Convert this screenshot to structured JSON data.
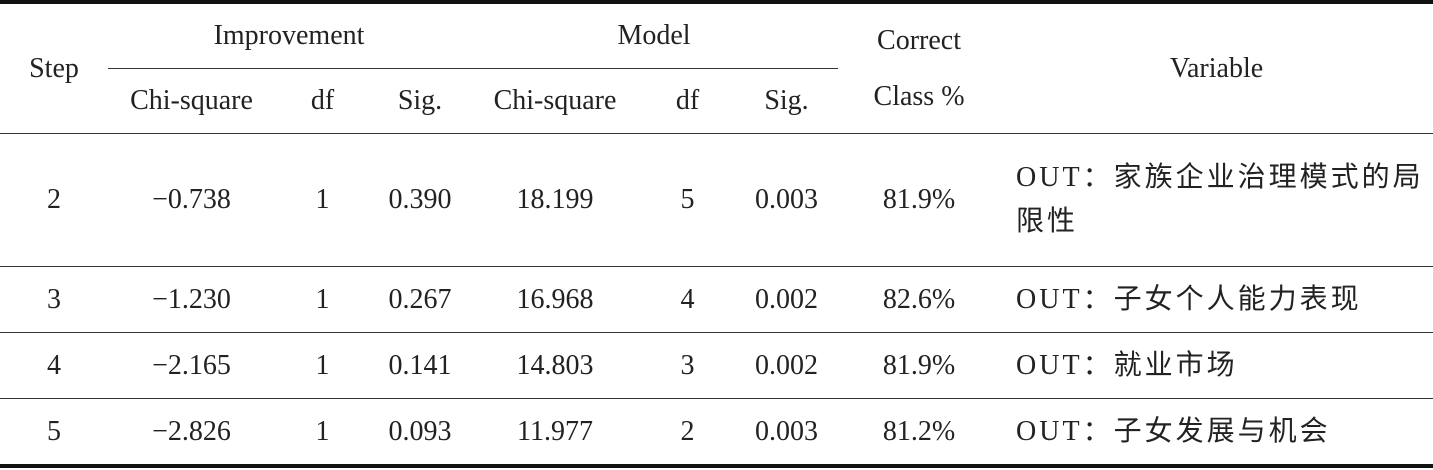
{
  "header": {
    "step": "Step",
    "improvement": "Improvement",
    "model": "Model",
    "correct": [
      "Correct",
      "Class %"
    ],
    "variable": "Variable",
    "sub": [
      "Chi-square",
      "df",
      "Sig.",
      "Chi-square",
      "df",
      "Sig."
    ]
  },
  "table": {
    "rows": [
      [
        "2",
        "−0.738",
        "1",
        "0.390",
        "18.199",
        "5",
        "0.003",
        "81.9%",
        "OUT：家族企业治理模式的局限性"
      ],
      [
        "3",
        "−1.230",
        "1",
        "0.267",
        "16.968",
        "4",
        "0.002",
        "82.6%",
        "OUT：子女个人能力表现"
      ],
      [
        "4",
        "−2.165",
        "1",
        "0.141",
        "14.803",
        "3",
        "0.002",
        "81.9%",
        "OUT：就业市场"
      ],
      [
        "5",
        "−2.826",
        "1",
        "0.093",
        "11.977",
        "2",
        "0.003",
        "81.2%",
        "OUT：子女发展与机会"
      ]
    ]
  }
}
